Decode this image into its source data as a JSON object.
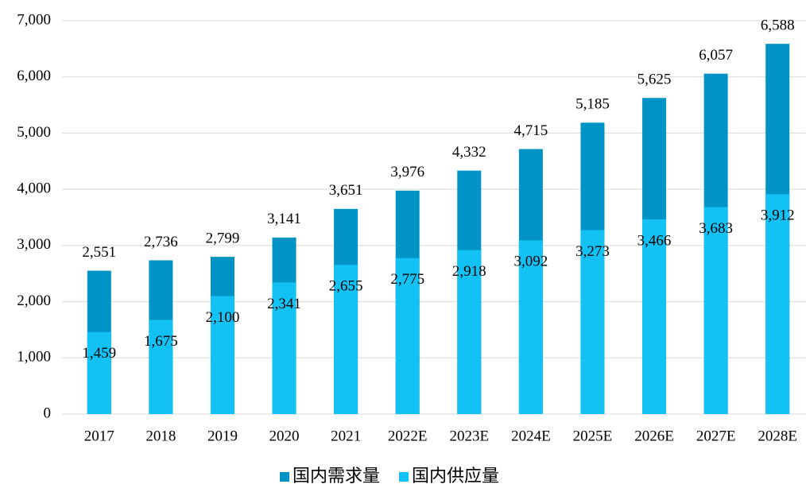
{
  "chart_data": {
    "type": "bar",
    "overlap": true,
    "categories": [
      "2017",
      "2018",
      "2019",
      "2020",
      "2021",
      "2022E",
      "2023E",
      "2024E",
      "2025E",
      "2026E",
      "2027E",
      "2028E"
    ],
    "series": [
      {
        "name": "国内需求量",
        "color": "#0094c6",
        "values": [
          2551,
          2736,
          2799,
          3141,
          3651,
          3976,
          4332,
          4715,
          5185,
          5625,
          6057,
          6588
        ],
        "value_labels": [
          "2,551",
          "2,736",
          "2,799",
          "3,141",
          "3,651",
          "3,976",
          "4,332",
          "4,715",
          "5,185",
          "5,625",
          "6,057",
          "6,588"
        ]
      },
      {
        "name": "国内供应量",
        "color": "#12c2f5",
        "values": [
          1459,
          1675,
          2100,
          2341,
          2655,
          2775,
          2918,
          3092,
          3273,
          3466,
          3683,
          3912
        ],
        "value_labels": [
          "1,459",
          "1,675",
          "2,100",
          "2,341",
          "2,655",
          "2,775",
          "2,918",
          "3,092",
          "3,273",
          "3,466",
          "3,683",
          "3,912"
        ]
      }
    ],
    "ylim": [
      0,
      7000
    ],
    "yticks": [
      0,
      {
        "value": 1000,
        "label": "1,000"
      },
      {
        "value": 2000,
        "label": "2,000"
      },
      {
        "value": 3000,
        "label": "3,000"
      },
      {
        "value": 4000,
        "label": "4,000"
      },
      {
        "value": 5000,
        "label": "5,000"
      },
      {
        "value": 6000,
        "label": "6,000"
      },
      {
        "value": 7000,
        "label": "7,000"
      }
    ],
    "grid": true,
    "legend": "bottom"
  }
}
